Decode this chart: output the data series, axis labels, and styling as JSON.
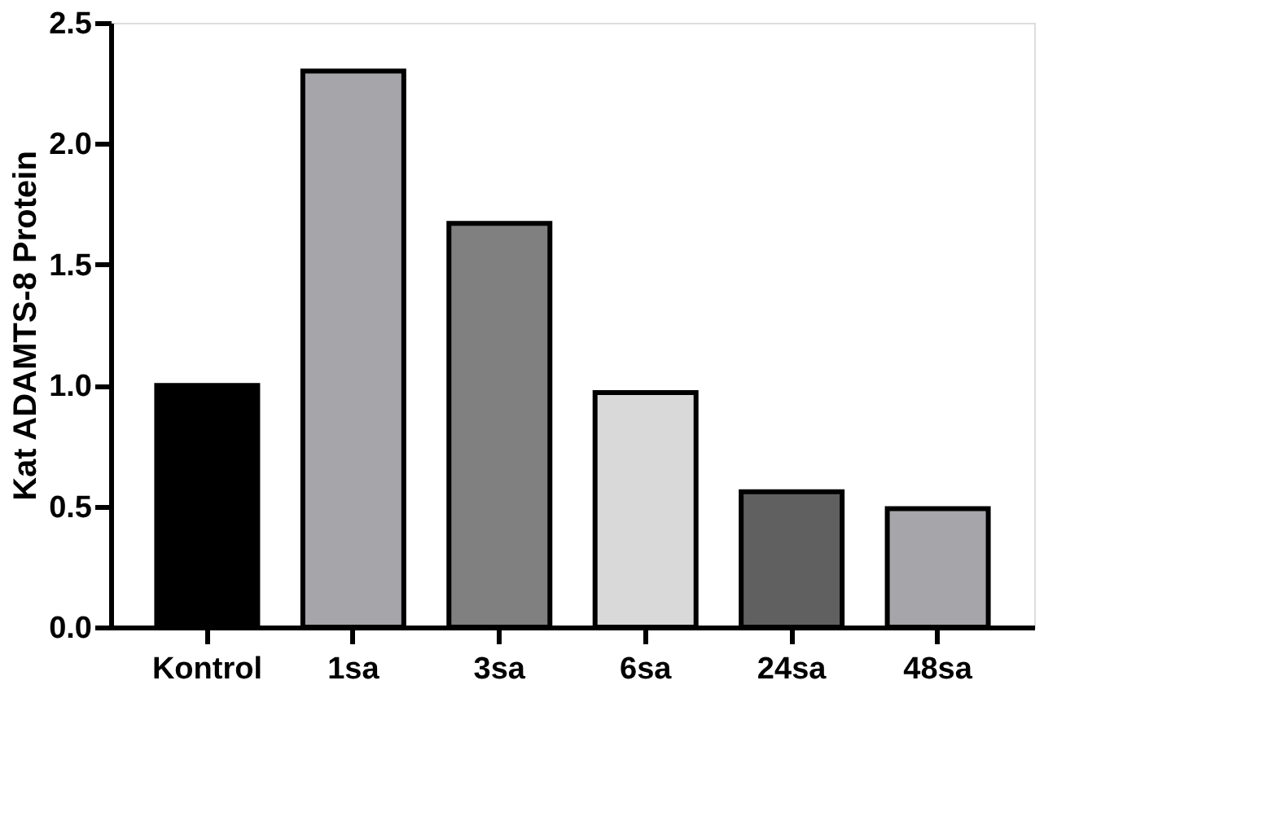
{
  "chart_data": {
    "type": "bar",
    "ylabel": "Kat ADAMTS-8 Protein",
    "categories": [
      "Kontrol",
      "1sa",
      "3sa",
      "6sa",
      "24sa",
      "48sa"
    ],
    "values": [
      1.0,
      2.3,
      1.67,
      0.97,
      0.56,
      0.49
    ],
    "colors": [
      "#000000",
      "#a6a5aa",
      "#808080",
      "#d9d9d9",
      "#606060",
      "#a6a5aa"
    ],
    "ylim": [
      0,
      2.5
    ],
    "yticks": [
      {
        "value": 0,
        "label": "0.0"
      },
      {
        "value": 0.5,
        "label": "0.5"
      },
      {
        "value": 1,
        "label": "1.0"
      },
      {
        "value": 1.5,
        "label": "1.5"
      },
      {
        "value": 2,
        "label": "2.0"
      },
      {
        "value": 2.5,
        "label": "2.5"
      }
    ],
    "grid": false
  }
}
